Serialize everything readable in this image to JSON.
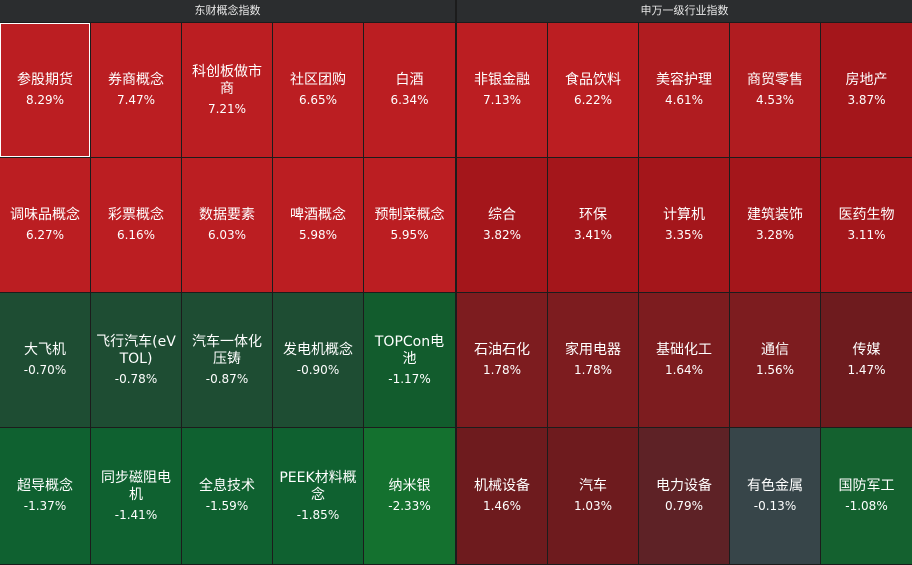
{
  "left_panel": {
    "title": "东财概念指数",
    "cells": [
      {
        "name": "参股期货",
        "pct": "8.29%",
        "color": "#bb1e22",
        "selected": true
      },
      {
        "name": "券商概念",
        "pct": "7.47%",
        "color": "#bb1e22"
      },
      {
        "name": "科创板做市商",
        "pct": "7.21%",
        "color": "#bb1e22"
      },
      {
        "name": "社区团购",
        "pct": "6.65%",
        "color": "#bb1e22"
      },
      {
        "name": "白酒",
        "pct": "6.34%",
        "color": "#bb1e22"
      },
      {
        "name": "调味品概念",
        "pct": "6.27%",
        "color": "#bb1e22"
      },
      {
        "name": "彩票概念",
        "pct": "6.16%",
        "color": "#bb1e22"
      },
      {
        "name": "数据要素",
        "pct": "6.03%",
        "color": "#bb1e22"
      },
      {
        "name": "啤酒概念",
        "pct": "5.98%",
        "color": "#bb1e22"
      },
      {
        "name": "预制菜概念",
        "pct": "5.95%",
        "color": "#bb1e22"
      },
      {
        "name": "大飞机",
        "pct": "-0.70%",
        "color": "#1e4d33"
      },
      {
        "name": "飞行汽车(eVTOL)",
        "pct": "-0.78%",
        "color": "#1e4d33"
      },
      {
        "name": "汽车一体化压铸",
        "pct": "-0.87%",
        "color": "#1e4d33"
      },
      {
        "name": "发电机概念",
        "pct": "-0.90%",
        "color": "#1e4d33"
      },
      {
        "name": "TOPCon电池",
        "pct": "-1.17%",
        "color": "#125c2d"
      },
      {
        "name": "超导概念",
        "pct": "-1.37%",
        "color": "#0f6130"
      },
      {
        "name": "同步磁阻电机",
        "pct": "-1.41%",
        "color": "#0f6130"
      },
      {
        "name": "全息技术",
        "pct": "-1.59%",
        "color": "#0f6130"
      },
      {
        "name": "PEEK材料概念",
        "pct": "-1.85%",
        "color": "#0f6130"
      },
      {
        "name": "纳米银",
        "pct": "-2.33%",
        "color": "#14712f"
      }
    ]
  },
  "right_panel": {
    "title": "申万一级行业指数",
    "cells": [
      {
        "name": "非银金融",
        "pct": "7.13%",
        "color": "#bb1e22"
      },
      {
        "name": "食品饮料",
        "pct": "6.22%",
        "color": "#bb1e22"
      },
      {
        "name": "美容护理",
        "pct": "4.61%",
        "color": "#b01c20"
      },
      {
        "name": "商贸零售",
        "pct": "4.53%",
        "color": "#b01c20"
      },
      {
        "name": "房地产",
        "pct": "3.87%",
        "color": "#a4161b"
      },
      {
        "name": "综合",
        "pct": "3.82%",
        "color": "#a4161b"
      },
      {
        "name": "环保",
        "pct": "3.41%",
        "color": "#a4161b"
      },
      {
        "name": "计算机",
        "pct": "3.35%",
        "color": "#a4161b"
      },
      {
        "name": "建筑装饰",
        "pct": "3.28%",
        "color": "#a4161b"
      },
      {
        "name": "医药生物",
        "pct": "3.11%",
        "color": "#a4161b"
      },
      {
        "name": "石油石化",
        "pct": "1.78%",
        "color": "#7d1c1f"
      },
      {
        "name": "家用电器",
        "pct": "1.78%",
        "color": "#7d1c1f"
      },
      {
        "name": "基础化工",
        "pct": "1.64%",
        "color": "#7d1c1f"
      },
      {
        "name": "通信",
        "pct": "1.56%",
        "color": "#7d1c1f"
      },
      {
        "name": "传媒",
        "pct": "1.47%",
        "color": "#6e1b1e"
      },
      {
        "name": "机械设备",
        "pct": "1.46%",
        "color": "#6e1b1e"
      },
      {
        "name": "汽车",
        "pct": "1.03%",
        "color": "#6e1b1e"
      },
      {
        "name": "电力设备",
        "pct": "0.79%",
        "color": "#5e2226"
      },
      {
        "name": "有色金属",
        "pct": "-0.13%",
        "color": "#374549"
      },
      {
        "name": "国防军工",
        "pct": "-1.08%",
        "color": "#14612f"
      }
    ]
  }
}
